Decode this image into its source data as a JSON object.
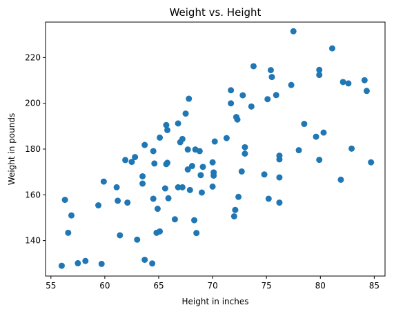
{
  "chart_data": {
    "type": "scatter",
    "title": "Weight vs. Height",
    "xlabel": "Height in inches",
    "ylabel": "Weight in pounds",
    "xlim": [
      54.5,
      86.0
    ],
    "ylim": [
      124.5,
      235.5
    ],
    "xticks": [
      55,
      60,
      65,
      70,
      75,
      80,
      85
    ],
    "yticks": [
      140,
      160,
      180,
      200,
      220
    ],
    "grid": false,
    "legend": false,
    "marker_color": "#1f77b4",
    "points": [
      [
        56.0,
        129.0
      ],
      [
        56.3,
        157.8
      ],
      [
        56.6,
        143.4
      ],
      [
        56.9,
        151.0
      ],
      [
        57.5,
        130.1
      ],
      [
        58.2,
        131.1
      ],
      [
        59.4,
        155.4
      ],
      [
        59.7,
        129.8
      ],
      [
        59.9,
        165.8
      ],
      [
        61.1,
        163.3
      ],
      [
        61.2,
        157.4
      ],
      [
        61.4,
        142.3
      ],
      [
        61.9,
        175.2
      ],
      [
        62.1,
        156.6
      ],
      [
        62.5,
        174.4
      ],
      [
        62.8,
        176.5
      ],
      [
        63.0,
        140.4
      ],
      [
        63.5,
        164.9
      ],
      [
        63.5,
        168.1
      ],
      [
        63.7,
        181.8
      ],
      [
        63.7,
        131.6
      ],
      [
        64.4,
        130.0
      ],
      [
        64.5,
        158.3
      ],
      [
        64.6,
        173.7
      ],
      [
        64.5,
        179.1
      ],
      [
        64.8,
        143.4
      ],
      [
        64.9,
        153.9
      ],
      [
        65.1,
        144.0
      ],
      [
        65.1,
        185.0
      ],
      [
        65.6,
        162.8
      ],
      [
        65.7,
        173.4
      ],
      [
        65.8,
        174.0
      ],
      [
        65.7,
        190.5
      ],
      [
        65.8,
        188.3
      ],
      [
        65.9,
        158.5
      ],
      [
        66.5,
        149.3
      ],
      [
        66.8,
        191.2
      ],
      [
        66.8,
        163.3
      ],
      [
        67.0,
        183.0
      ],
      [
        67.2,
        184.4
      ],
      [
        67.2,
        163.3
      ],
      [
        67.5,
        195.5
      ],
      [
        67.7,
        179.8
      ],
      [
        67.7,
        171.1
      ],
      [
        67.8,
        202.0
      ],
      [
        67.9,
        162.1
      ],
      [
        68.1,
        172.6
      ],
      [
        68.3,
        148.9
      ],
      [
        68.4,
        179.8
      ],
      [
        68.5,
        143.3
      ],
      [
        68.8,
        179.1
      ],
      [
        68.9,
        168.6
      ],
      [
        69.0,
        161.0
      ],
      [
        69.1,
        172.2
      ],
      [
        70.0,
        163.6
      ],
      [
        70.0,
        174.2
      ],
      [
        70.1,
        168.4
      ],
      [
        70.1,
        169.8
      ],
      [
        70.2,
        183.3
      ],
      [
        71.3,
        184.8
      ],
      [
        71.7,
        205.7
      ],
      [
        71.7,
        200.0
      ],
      [
        72.0,
        150.6
      ],
      [
        72.1,
        153.4
      ],
      [
        72.2,
        194.0
      ],
      [
        72.3,
        192.9
      ],
      [
        72.4,
        159.1
      ],
      [
        72.7,
        170.2
      ],
      [
        72.8,
        203.5
      ],
      [
        73.0,
        178.0
      ],
      [
        73.0,
        180.8
      ],
      [
        73.6,
        198.6
      ],
      [
        73.8,
        216.2
      ],
      [
        74.8,
        168.9
      ],
      [
        75.1,
        201.8
      ],
      [
        75.2,
        158.3
      ],
      [
        75.4,
        214.5
      ],
      [
        75.5,
        211.5
      ],
      [
        75.9,
        203.6
      ],
      [
        76.2,
        156.6
      ],
      [
        76.2,
        167.6
      ],
      [
        76.2,
        175.5
      ],
      [
        76.2,
        177.1
      ],
      [
        77.3,
        208.0
      ],
      [
        77.5,
        231.5
      ],
      [
        78.0,
        179.5
      ],
      [
        78.5,
        191.0
      ],
      [
        79.6,
        185.4
      ],
      [
        79.9,
        175.3
      ],
      [
        79.9,
        214.6
      ],
      [
        79.9,
        212.4
      ],
      [
        80.3,
        187.2
      ],
      [
        81.1,
        224.0
      ],
      [
        81.9,
        166.6
      ],
      [
        82.1,
        209.3
      ],
      [
        82.6,
        208.7
      ],
      [
        82.9,
        180.2
      ],
      [
        84.1,
        210.1
      ],
      [
        84.3,
        205.4
      ],
      [
        84.7,
        174.2
      ]
    ]
  }
}
